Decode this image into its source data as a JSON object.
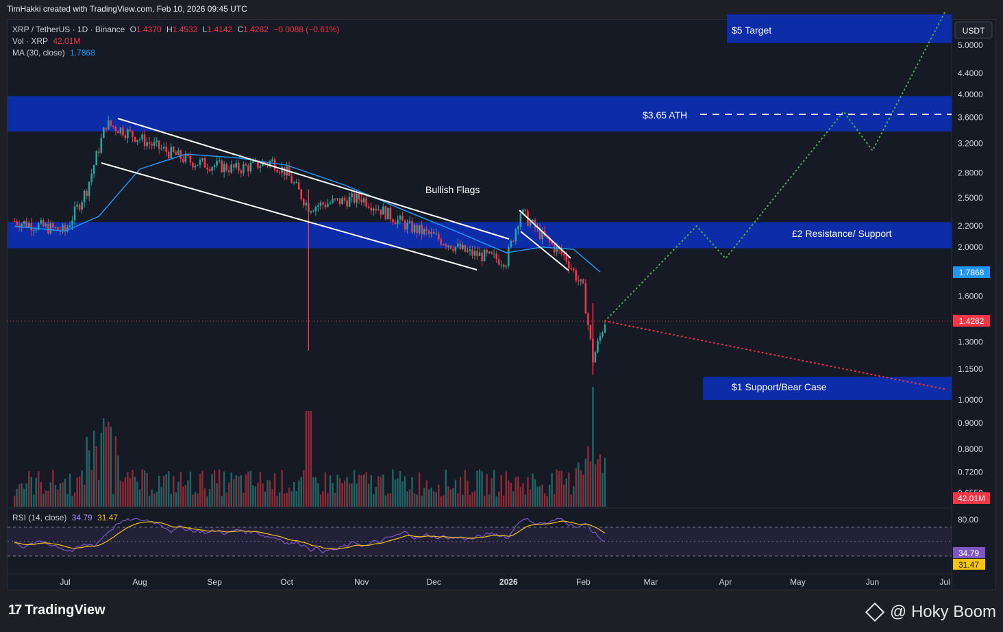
{
  "header": {
    "credit": "TimHakki created with TradingView.com, Feb 10, 2026 09:45 UTC"
  },
  "legend": {
    "symbol": "XRP / TetherUS · 1D · Binance",
    "o_label": "O",
    "o_value": "1.4370",
    "h_label": "H",
    "h_value": "1.4532",
    "l_label": "L",
    "l_value": "1.4142",
    "c_label": "C",
    "c_value": "1.4282",
    "change": "−0.0088 (−0.61%)",
    "vol_label": "Vol · XRP",
    "vol_value": "42.01M",
    "ma_label": "MA (30, close)",
    "ma_value": "1.7868",
    "rsi_label": "RSI (14, close)",
    "rsi_value": "34.79",
    "rsi_ma_value": "31.47"
  },
  "currency": "USDT",
  "annotations": {
    "target": "$5 Target",
    "ath": "$3.65 ATH",
    "flags": "Bullish Flags",
    "resistance": "£2 Resistance/ Support",
    "support": "$1 Support/Bear Case"
  },
  "badges": {
    "ma": "1.7868",
    "price": "1.4282",
    "volume": "42.01M",
    "rsi": "34.79",
    "rsi_ma": "31.47"
  },
  "footer": {
    "brand": "TradingView",
    "watermark": "@ Hoky Boom"
  },
  "colors": {
    "up": "#26a69a",
    "down": "#f23645",
    "ma": "#2196f3",
    "zone": "#0d2fb3",
    "rsi": "#7e57c2",
    "rsi_ma": "#f5c518",
    "projection_up": "#4caf50",
    "projection_down": "#f23645"
  },
  "chart_data": {
    "type": "line",
    "title": "XRP / TetherUS · 1D · Binance",
    "scale": "log",
    "y_ticks": [
      5.0,
      4.4,
      4.0,
      3.6,
      3.2,
      2.8,
      2.5,
      2.2,
      2.0,
      1.6,
      1.45,
      1.3,
      1.15,
      1.0,
      0.9,
      0.8,
      0.72,
      0.655
    ],
    "y_tick_labels": [
      "5.0000",
      "4.4000",
      "4.0000",
      "3.6000",
      "3.2000",
      "2.8000",
      "2.5000",
      "2.2000",
      "2.0000",
      "1.6000",
      "1.4500",
      "1.3000",
      "1.1500",
      "1.0000",
      "0.9000",
      "0.8000",
      "0.7200",
      "0.6550"
    ],
    "x_labels": [
      "Jul",
      "Aug",
      "Sep",
      "Oct",
      "Nov",
      "Dec",
      "2026",
      "Feb",
      "Mar",
      "Apr",
      "May",
      "Jun",
      "Jul"
    ],
    "price_path": {
      "name": "XRP close (approx.)",
      "dates": [
        "2025-06-10",
        "2025-07-01",
        "2025-07-10",
        "2025-07-18",
        "2025-07-25",
        "2025-08-08",
        "2025-08-22",
        "2025-09-10",
        "2025-09-25",
        "2025-10-01",
        "2025-10-10",
        "2025-10-20",
        "2025-11-01",
        "2025-11-20",
        "2025-12-01",
        "2025-12-15",
        "2025-12-31",
        "2026-01-06",
        "2026-01-15",
        "2026-01-25",
        "2026-02-01",
        "2026-02-05",
        "2026-02-10"
      ],
      "values": [
        2.25,
        2.15,
        2.6,
        3.5,
        3.4,
        3.15,
        2.95,
        2.85,
        2.95,
        2.8,
        2.4,
        2.45,
        2.5,
        2.2,
        2.1,
        1.95,
        1.88,
        2.35,
        2.1,
        1.9,
        1.65,
        1.2,
        1.4282
      ]
    },
    "ma_path": {
      "name": "MA (30, close)",
      "dates": [
        "2025-06-10",
        "2025-07-01",
        "2025-07-15",
        "2025-08-01",
        "2025-08-20",
        "2025-09-10",
        "2025-10-01",
        "2025-10-25",
        "2025-11-20",
        "2025-12-10",
        "2025-12-31",
        "2026-01-15",
        "2026-01-28",
        "2026-02-08"
      ],
      "values": [
        2.2,
        2.15,
        2.3,
        2.85,
        3.05,
        3.0,
        2.9,
        2.65,
        2.35,
        2.15,
        1.95,
        2.0,
        1.98,
        1.7868
      ]
    },
    "zones": [
      {
        "label": "$5 Target",
        "low": 5.05,
        "high": 5.75
      },
      {
        "label": "$3.65 ATH",
        "low": 3.38,
        "high": 3.97
      },
      {
        "label": "£2 Resistance/ Support",
        "low": 1.99,
        "high": 2.24
      },
      {
        "label": "$1 Support/Bear Case",
        "low": 1.0,
        "high": 1.11
      }
    ],
    "projection_bull": {
      "dates": [
        "2026-02-10",
        "2026-03-20",
        "2026-04-01",
        "2026-05-20",
        "2026-06-01",
        "2026-07-01"
      ],
      "values": [
        1.43,
        2.2,
        1.9,
        3.7,
        3.1,
        5.8
      ]
    },
    "projection_bear": {
      "dates": [
        "2026-02-10",
        "2026-07-01"
      ],
      "values": [
        1.43,
        1.05
      ]
    },
    "volume_peak_value": "42.01M",
    "rsi": {
      "ticks": [
        80
      ],
      "current": 34.79,
      "ma_current": 31.47
    }
  }
}
